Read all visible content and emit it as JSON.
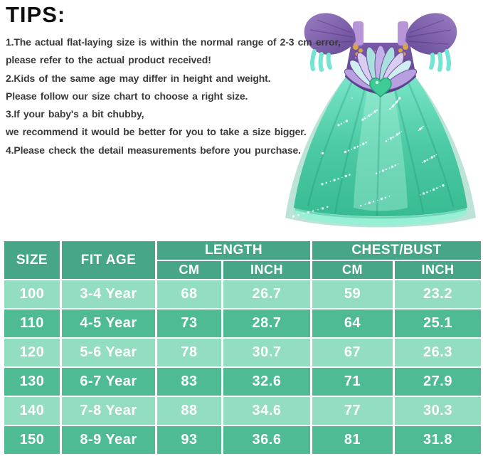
{
  "tips": {
    "title": "TIPS:",
    "lines": [
      "1.The actual flat-laying size is within the normal range of 2-3 cm error,",
      "please refer to the actual product received!",
      "2.Kids of the same age may differ in height and weight.",
      "Please follow our size chart to choose a right size.",
      "3.If your baby's a bit chubby,",
      "we recommend it would be better for you to take a size bigger.",
      "4.Please check the detail measurements before you purchase."
    ]
  },
  "product_image": {
    "name": "mermaid-princess-costume-dress",
    "bodice_color": "#5d4390",
    "strap_color": "#b795d8",
    "sleeve_trim_color": "#74e4d3",
    "skirt_color": "#46c8a3",
    "skirt_light_color": "#96f0d5",
    "gem_color": "#3ecb96",
    "gold_accent_color": "#dfa943"
  },
  "size_table": {
    "headers": {
      "size": "SIZE",
      "fit_age": "FIT AGE",
      "length": "LENGTH",
      "chest_bust": "CHEST/BUST",
      "cm": "CM",
      "inch": "INCH"
    },
    "rows": [
      {
        "size": "100",
        "fit_age": "3-4 Year",
        "length_cm": "68",
        "length_inch": "26.7",
        "chest_cm": "59",
        "chest_inch": "23.2"
      },
      {
        "size": "110",
        "fit_age": "4-5 Year",
        "length_cm": "73",
        "length_inch": "28.7",
        "chest_cm": "64",
        "chest_inch": "25.1"
      },
      {
        "size": "120",
        "fit_age": "5-6 Year",
        "length_cm": "78",
        "length_inch": "30.7",
        "chest_cm": "67",
        "chest_inch": "26.3"
      },
      {
        "size": "130",
        "fit_age": "6-7 Year",
        "length_cm": "83",
        "length_inch": "32.6",
        "chest_cm": "71",
        "chest_inch": "27.9"
      },
      {
        "size": "140",
        "fit_age": "7-8 Year",
        "length_cm": "88",
        "length_inch": "34.6",
        "chest_cm": "77",
        "chest_inch": "30.3"
      },
      {
        "size": "150",
        "fit_age": "8-9 Year",
        "length_cm": "93",
        "length_inch": "36.6",
        "chest_cm": "81",
        "chest_inch": "31.8"
      }
    ],
    "colors": {
      "header_bg": "#47a687",
      "row_dark_bg": "#4fbb93",
      "row_light_bg": "#93ddc1",
      "text": "#ffffff",
      "grid": "#ffffff"
    }
  }
}
